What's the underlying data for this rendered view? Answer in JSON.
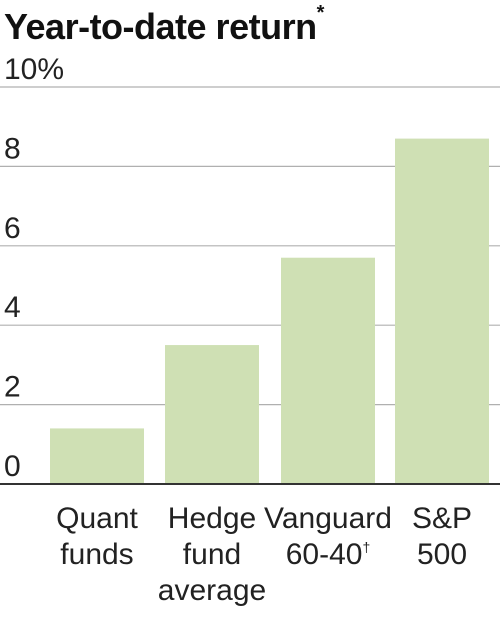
{
  "chart_data": {
    "type": "bar",
    "title": "Year-to-date return",
    "title_mark": "*",
    "xlabel": "",
    "ylabel": "",
    "ylim": [
      0,
      10
    ],
    "yticks": [
      0,
      2,
      4,
      6,
      8,
      10
    ],
    "ytick_labels": [
      "0",
      "2",
      "4",
      "6",
      "8",
      "10%"
    ],
    "categories": [
      {
        "lines": [
          "Quant",
          "funds"
        ],
        "mark": ""
      },
      {
        "lines": [
          "Hedge",
          "fund",
          "average"
        ],
        "mark": ""
      },
      {
        "lines": [
          "Vanguard",
          "60-40"
        ],
        "mark": "†"
      },
      {
        "lines": [
          "S&P",
          "500"
        ],
        "mark": ""
      }
    ],
    "values": [
      1.4,
      3.5,
      5.7,
      8.7
    ],
    "grid": true,
    "legend": "none",
    "bar_color": "#cfe0b4",
    "grid_color": "#b0b0b0",
    "axis_color": "#333333"
  }
}
